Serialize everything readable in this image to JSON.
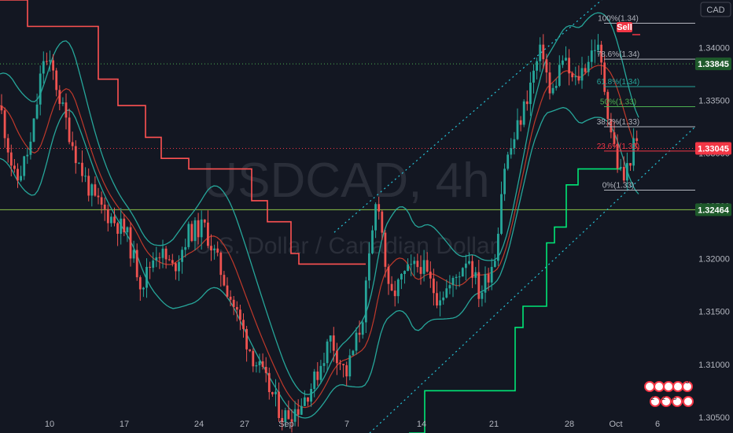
{
  "chart_data": {
    "type": "candlestick",
    "symbol_watermark": "USDCAD, 4h",
    "subtitle_watermark": "U.S. Dollar / Canadian Dollar",
    "currency_label": "CAD",
    "y_range": [
      1.3035,
      1.3445
    ],
    "x_ticks": [
      "10",
      "17",
      "24",
      "27",
      "Sep",
      "7",
      "14",
      "21",
      "28",
      "Oct",
      "6"
    ],
    "y_ticks": [
      "1.34000",
      "1.33500",
      "1.33000",
      "1.32500",
      "1.32000",
      "1.31500",
      "1.31000",
      "1.30500"
    ],
    "price_tags": [
      {
        "label": "1.33845",
        "value": 1.33845,
        "color": "#1e5a2b",
        "line_color": "#4caf50",
        "dotted": true
      },
      {
        "label": "1.33045",
        "value": 1.33045,
        "color": "#f23645",
        "line_color": "#f23645",
        "dotted": true
      },
      {
        "label": "1.32464",
        "value": 1.32464,
        "color": "#1e5a2b",
        "line_color": "#8bc34a",
        "dotted": false
      }
    ],
    "fib_levels": [
      {
        "label": "100%(1.34)",
        "value": 1.3423,
        "color": "#b2b5be"
      },
      {
        "label": "78.6%(1.34)",
        "value": 1.3389,
        "color": "#b2b5be"
      },
      {
        "label": "61.8%(1.34)",
        "value": 1.3363,
        "color": "#26a69a"
      },
      {
        "label": "50%(1.33)",
        "value": 1.3344,
        "color": "#4caf50"
      },
      {
        "label": "38.2%(1.33)",
        "value": 1.3325,
        "color": "#b2b5be"
      },
      {
        "label": "23.6%(1.33)",
        "value": 1.3302,
        "color": "#f23645"
      },
      {
        "label": "0%(1.33)",
        "value": 1.3265,
        "color": "#b2b5be"
      }
    ],
    "signal_label": "Sell",
    "event_badges_top": [
      "",
      "",
      "",
      "",
      "3"
    ],
    "event_badges_bottom": [
      "2",
      "2",
      "5",
      ""
    ]
  }
}
